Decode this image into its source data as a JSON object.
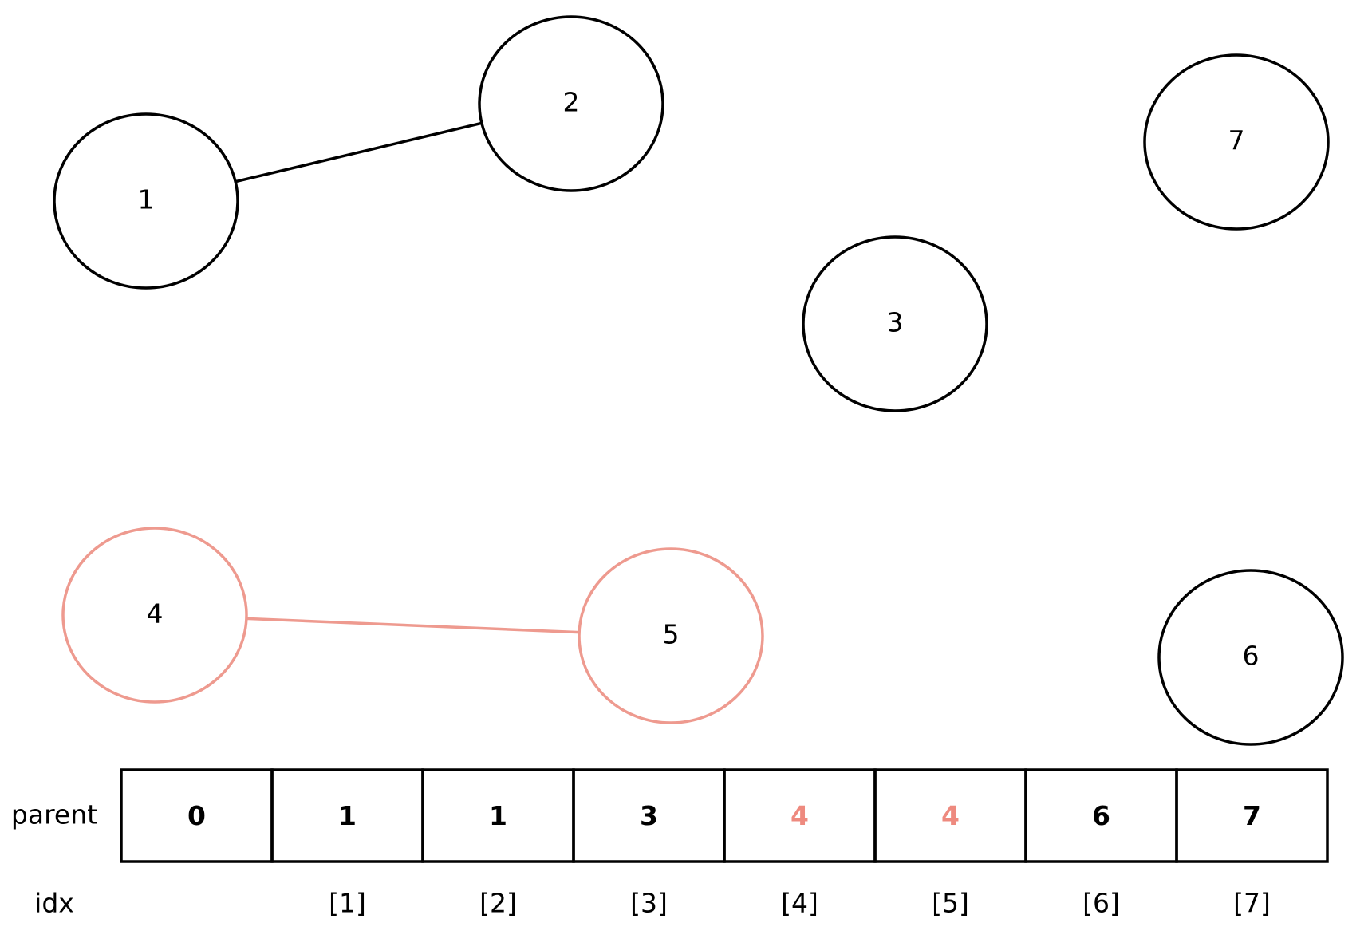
{
  "nodes": [
    {
      "label": "1",
      "color": "#000000"
    },
    {
      "label": "2",
      "color": "#000000"
    },
    {
      "label": "7",
      "color": "#000000"
    },
    {
      "label": "3",
      "color": "#000000"
    },
    {
      "label": "4",
      "color": "#ee9a8f"
    },
    {
      "label": "5",
      "color": "#ee9a8f"
    },
    {
      "label": "6",
      "color": "#000000"
    }
  ],
  "edges": [
    {
      "from": "1",
      "to": "2",
      "color": "#000000"
    },
    {
      "from": "4",
      "to": "5",
      "color": "#ee9a8f"
    }
  ],
  "table": {
    "row_label": "parent",
    "index_label": "idx",
    "cells": [
      {
        "text": "0",
        "color": "#000000"
      },
      {
        "text": "1",
        "color": "#000000"
      },
      {
        "text": "1",
        "color": "#000000"
      },
      {
        "text": "3",
        "color": "#000000"
      },
      {
        "text": "4",
        "color": "#ee8a7f"
      },
      {
        "text": "4",
        "color": "#ee8a7f"
      },
      {
        "text": "6",
        "color": "#000000"
      },
      {
        "text": "7",
        "color": "#000000"
      }
    ],
    "indices": [
      null,
      "[1]",
      "[2]",
      "[3]",
      "[4]",
      "[5]",
      "[6]",
      "[7]"
    ]
  }
}
